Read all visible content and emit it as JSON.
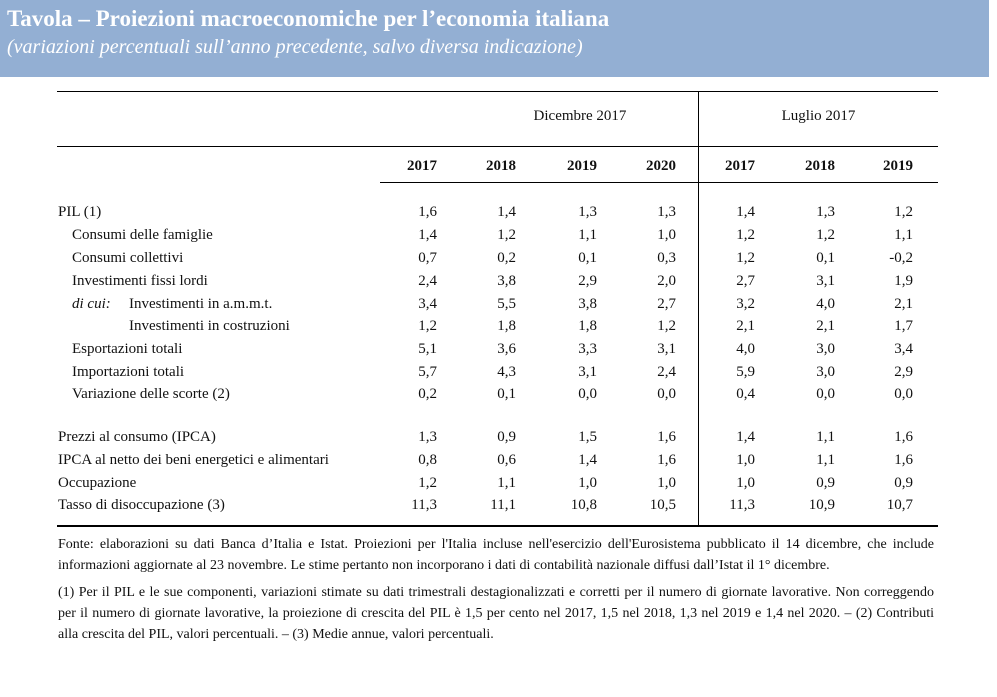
{
  "header": {
    "title": "Tavola – Proiezioni macroeconomiche per l’economia italiana",
    "subtitle": "(variazioni percentuali sull’anno precedente, salvo diversa indicazione)"
  },
  "table": {
    "groups": [
      "Dicembre 2017",
      "Luglio 2017"
    ],
    "years": [
      "2017",
      "2018",
      "2019",
      "2020",
      "2017",
      "2018",
      "2019"
    ],
    "di_cui_label": "di cui:",
    "rows": [
      {
        "label": "PIL (1)",
        "values": [
          "1,6",
          "1,4",
          "1,3",
          "1,3",
          "1,4",
          "1,3",
          "1,2"
        ]
      },
      {
        "label": "Consumi delle famiglie",
        "values": [
          "1,4",
          "1,2",
          "1,1",
          "1,0",
          "1,2",
          "1,2",
          "1,1"
        ]
      },
      {
        "label": "Consumi collettivi",
        "values": [
          "0,7",
          "0,2",
          "0,1",
          "0,3",
          "1,2",
          "0,1",
          "-0,2"
        ]
      },
      {
        "label": "Investimenti fissi lordi",
        "values": [
          "2,4",
          "3,8",
          "2,9",
          "2,0",
          "2,7",
          "3,1",
          "1,9"
        ]
      },
      {
        "label": "Investimenti in a.m.m.t.",
        "values": [
          "3,4",
          "5,5",
          "3,8",
          "2,7",
          "3,2",
          "4,0",
          "2,1"
        ]
      },
      {
        "label": "Investimenti in costruzioni",
        "values": [
          "1,2",
          "1,8",
          "1,8",
          "1,2",
          "2,1",
          "2,1",
          "1,7"
        ]
      },
      {
        "label": "Esportazioni totali",
        "values": [
          "5,1",
          "3,6",
          "3,3",
          "3,1",
          "4,0",
          "3,0",
          "3,4"
        ]
      },
      {
        "label": "Importazioni totali",
        "values": [
          "5,7",
          "4,3",
          "3,1",
          "2,4",
          "5,9",
          "3,0",
          "2,9"
        ]
      },
      {
        "label": "Variazione delle scorte (2)",
        "values": [
          "0,2",
          "0,1",
          "0,0",
          "0,0",
          "0,4",
          "0,0",
          "0,0"
        ]
      },
      {
        "label": "Prezzi al consumo (IPCA)",
        "values": [
          "1,3",
          "0,9",
          "1,5",
          "1,6",
          "1,4",
          "1,1",
          "1,6"
        ]
      },
      {
        "label": "IPCA al netto dei beni energetici e alimentari",
        "values": [
          "0,8",
          "0,6",
          "1,4",
          "1,6",
          "1,0",
          "1,1",
          "1,6"
        ]
      },
      {
        "label": "Occupazione",
        "values": [
          "1,2",
          "1,1",
          "1,0",
          "1,0",
          "1,0",
          "0,9",
          "0,9"
        ]
      },
      {
        "label": "Tasso di disoccupazione (3)",
        "values": [
          "11,3",
          "11,1",
          "10,8",
          "10,5",
          "11,3",
          "10,9",
          "10,7"
        ]
      }
    ]
  },
  "notes": {
    "source": "Fonte: elaborazioni su dati Banca d’Italia e Istat. Proiezioni per l'Italia incluse nell'esercizio dell'Eurosistema pubblicato il 14 dicembre, che include informazioni aggiornate al 23 novembre. Le stime pertanto non incorporano i dati di contabilità nazionale diffusi dall’Istat il 1° dicembre.",
    "footnotes": "(1) Per il PIL e le sue componenti, variazioni stimate su dati trimestrali destagionalizzati e corretti per il numero di giornate lavorative. Non correggendo per il numero di giornate lavorative, la proiezione di crescita del PIL è 1,5 per cento nel 2017, 1,5 nel 2018, 1,3 nel 2019 e 1,4 nel 2020. – (2) Contributi alla crescita del PIL, valori percentuali. – (3) Medie annue, valori percentuali."
  }
}
